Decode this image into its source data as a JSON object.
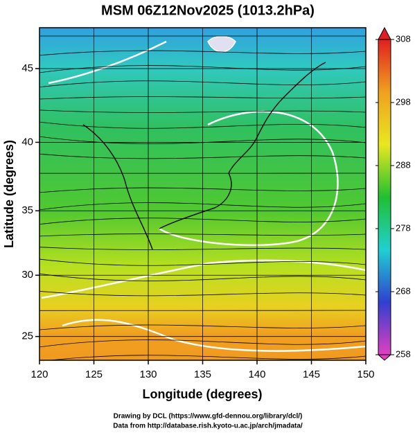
{
  "chart_data": {
    "type": "map",
    "title": "MSM 06Z12Nov2025 (1013.2hPa)",
    "xlabel": "Longitude (degrees)",
    "ylabel": "Latitude  (degrees)",
    "projection": "mercator",
    "xlim": [
      120,
      150
    ],
    "xticks": [
      120,
      125,
      130,
      135,
      140,
      145,
      150
    ],
    "ylim": [
      23,
      47.6
    ],
    "yticks": [
      25,
      30,
      35,
      40,
      45
    ],
    "grid": true,
    "colorbar": {
      "lim": [
        258,
        308
      ],
      "ticks": [
        258,
        268,
        278,
        288,
        298,
        308
      ],
      "colors": [
        "#e040c0",
        "#3040d0",
        "#20d0d0",
        "#20c030",
        "#e8e820",
        "#f0a020",
        "#e02020"
      ]
    },
    "credits": [
      "Drawing by DCL (https://www.gfd-dennou.org/library/dcl/)",
      "Data from http://database.rish.kyoto-u.ac.jp/arch/jmadata/"
    ]
  }
}
